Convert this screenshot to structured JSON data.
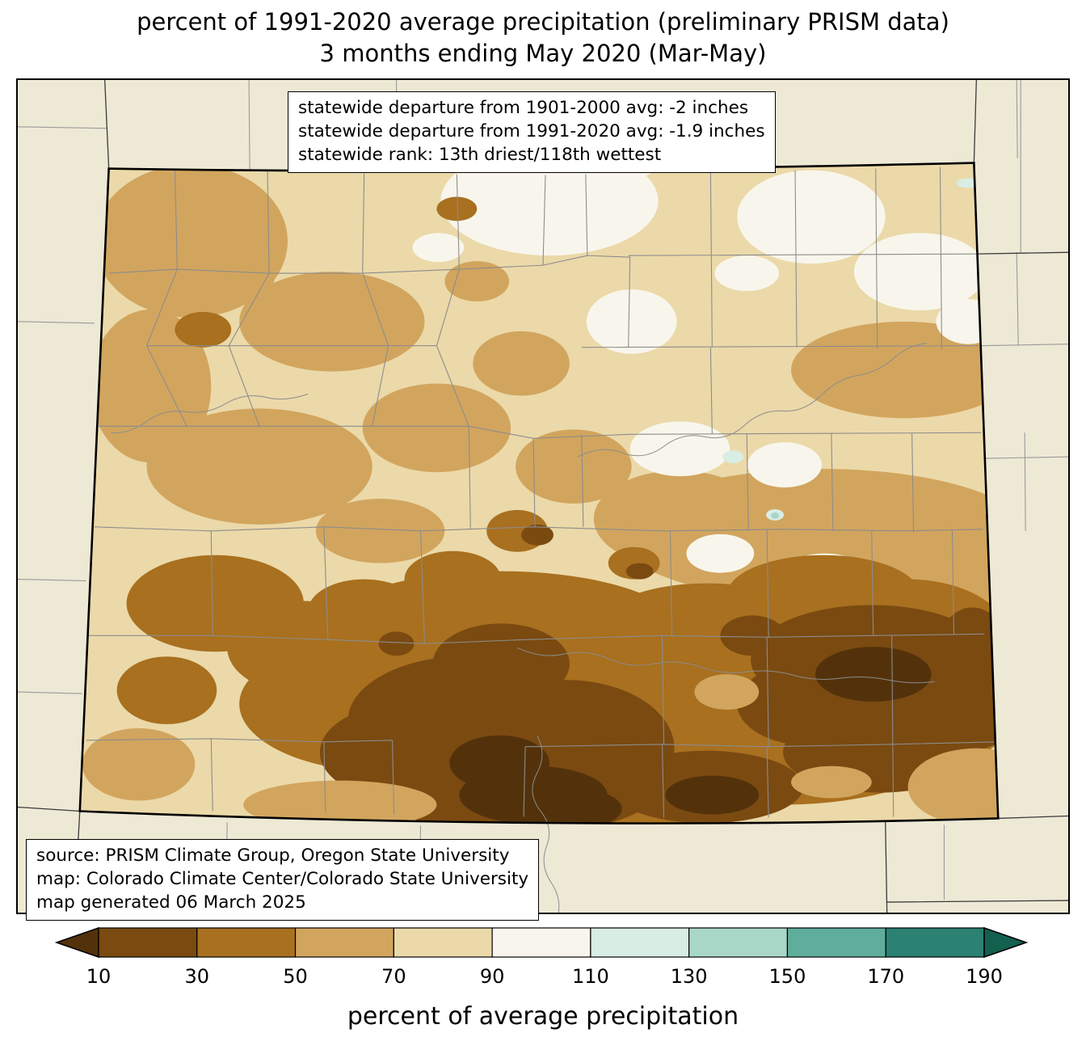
{
  "title": {
    "line1": "percent of 1991-2020 average precipitation (preliminary PRISM data)",
    "line2": "3 months ending May 2020 (Mar-May)"
  },
  "stats_box": {
    "lines": [
      "statewide departure from 1901-2000 avg: -2 inches",
      "statewide departure from 1991-2020 avg: -1.9 inches",
      "statewide rank: 13th driest/118th wettest"
    ]
  },
  "source_box": {
    "lines": [
      "source: PRISM Climate Group, Oregon State University",
      "map: Colorado Climate Center/Colorado State University",
      "map generated 06 March 2025"
    ]
  },
  "colorbar": {
    "label": "percent of average precipitation",
    "ticks": [
      "10",
      "30",
      "50",
      "70",
      "90",
      "110",
      "130",
      "150",
      "170",
      "190"
    ],
    "under_arrow_color": "#53320B",
    "over_arrow_color": "#13604F",
    "segment_colors": [
      "#7A4A11",
      "#A8701F",
      "#D2A55E",
      "#EBD9A9",
      "#F8F6EC",
      "#D8EDE4",
      "#A8D7C8",
      "#5FAE9B",
      "#2B8172"
    ]
  },
  "map": {
    "region": "Colorado",
    "outside_color": "#EDE9D5",
    "county_line_color": "#8C8C8C",
    "state_border_color": "#000000"
  }
}
